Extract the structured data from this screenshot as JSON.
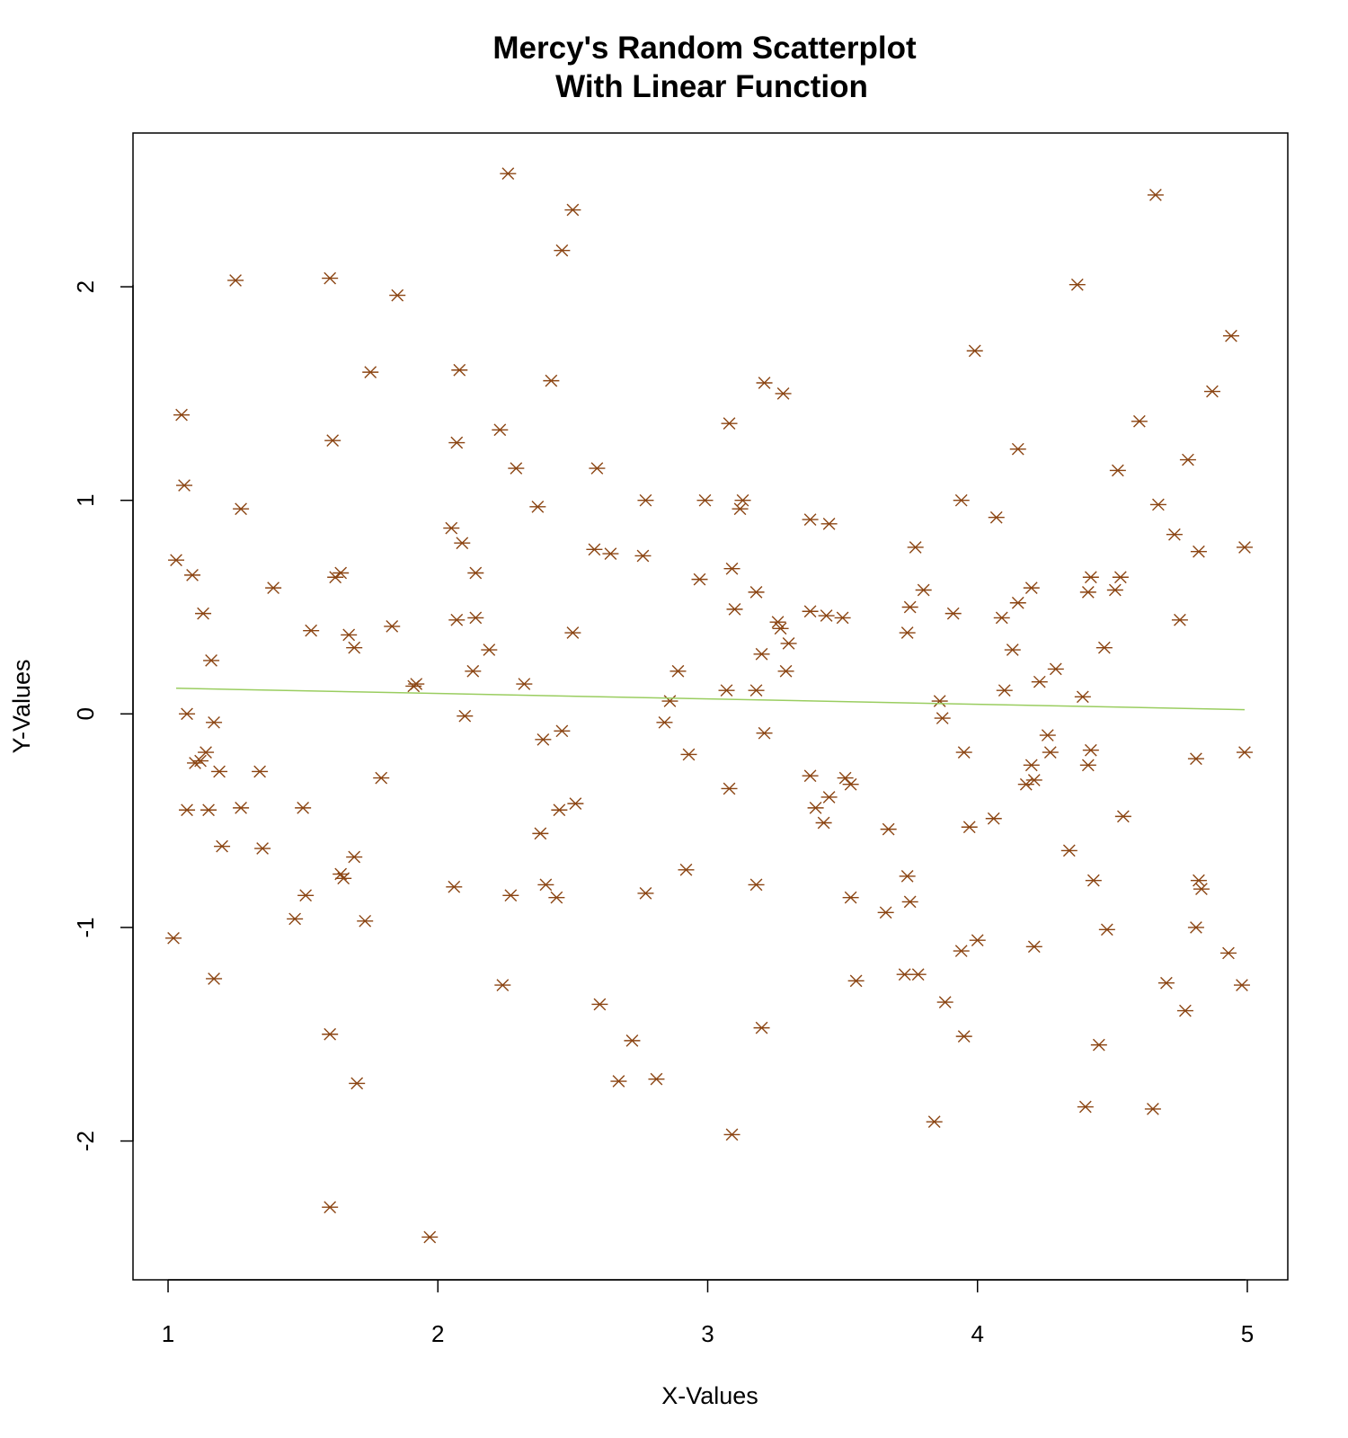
{
  "chart_data": {
    "type": "scatter",
    "title": [
      "Mercy's Random Scatterplot",
      "With Linear Function"
    ],
    "xlabel": "X-Values",
    "ylabel": "Y-Values",
    "xlim": [
      0.87,
      5.15
    ],
    "ylim": [
      -2.65,
      2.72
    ],
    "xticks": [
      1,
      2,
      3,
      4,
      5
    ],
    "yticks": [
      -2,
      -1,
      0,
      1,
      2
    ],
    "grid": false,
    "legend": null,
    "marker": "asterisk",
    "colors": {
      "points": "#8B4513",
      "line": "#9acd60",
      "axes": "#000000"
    },
    "regression_line": {
      "x": [
        1.03,
        4.99
      ],
      "y": [
        0.12,
        0.02
      ]
    },
    "points": [
      [
        1.02,
        -1.05
      ],
      [
        1.03,
        0.72
      ],
      [
        1.05,
        1.4
      ],
      [
        1.06,
        1.07
      ],
      [
        1.07,
        -0.45
      ],
      [
        1.07,
        0.0
      ],
      [
        1.09,
        0.65
      ],
      [
        1.1,
        -0.23
      ],
      [
        1.12,
        -0.22
      ],
      [
        1.13,
        0.47
      ],
      [
        1.14,
        -0.18
      ],
      [
        1.15,
        -0.45
      ],
      [
        1.16,
        0.25
      ],
      [
        1.17,
        -0.04
      ],
      [
        1.17,
        -1.24
      ],
      [
        1.19,
        -0.27
      ],
      [
        1.2,
        -0.62
      ],
      [
        1.25,
        2.03
      ],
      [
        1.27,
        0.96
      ],
      [
        1.27,
        -0.44
      ],
      [
        1.34,
        -0.27
      ],
      [
        1.35,
        -0.63
      ],
      [
        1.39,
        0.59
      ],
      [
        1.47,
        -0.96
      ],
      [
        1.5,
        -0.44
      ],
      [
        1.51,
        -0.85
      ],
      [
        1.53,
        0.39
      ],
      [
        1.6,
        2.04
      ],
      [
        1.61,
        1.28
      ],
      [
        1.6,
        -1.5
      ],
      [
        1.6,
        -2.31
      ],
      [
        1.62,
        0.64
      ],
      [
        1.64,
        0.66
      ],
      [
        1.64,
        -0.75
      ],
      [
        1.65,
        -0.77
      ],
      [
        1.67,
        0.37
      ],
      [
        1.69,
        0.31
      ],
      [
        1.69,
        -0.67
      ],
      [
        1.7,
        -1.73
      ],
      [
        1.73,
        -0.97
      ],
      [
        1.75,
        1.6
      ],
      [
        1.79,
        -0.3
      ],
      [
        1.83,
        0.41
      ],
      [
        1.85,
        1.96
      ],
      [
        1.91,
        0.13
      ],
      [
        1.92,
        0.14
      ],
      [
        1.97,
        -2.45
      ],
      [
        2.05,
        0.87
      ],
      [
        2.06,
        -0.81
      ],
      [
        2.07,
        0.44
      ],
      [
        2.07,
        1.27
      ],
      [
        2.08,
        1.61
      ],
      [
        2.09,
        0.8
      ],
      [
        2.1,
        -0.01
      ],
      [
        2.13,
        0.2
      ],
      [
        2.14,
        0.66
      ],
      [
        2.14,
        0.45
      ],
      [
        2.19,
        0.3
      ],
      [
        2.23,
        1.33
      ],
      [
        2.24,
        -1.27
      ],
      [
        2.26,
        2.53
      ],
      [
        2.27,
        -0.85
      ],
      [
        2.29,
        1.15
      ],
      [
        2.32,
        0.14
      ],
      [
        2.37,
        0.97
      ],
      [
        2.38,
        -0.56
      ],
      [
        2.39,
        -0.12
      ],
      [
        2.4,
        -0.8
      ],
      [
        2.42,
        1.56
      ],
      [
        2.44,
        -0.86
      ],
      [
        2.45,
        -0.45
      ],
      [
        2.46,
        2.17
      ],
      [
        2.46,
        -0.08
      ],
      [
        2.5,
        0.38
      ],
      [
        2.5,
        2.36
      ],
      [
        2.51,
        -0.42
      ],
      [
        2.58,
        0.77
      ],
      [
        2.59,
        1.15
      ],
      [
        2.6,
        -1.36
      ],
      [
        2.64,
        0.75
      ],
      [
        2.67,
        -1.72
      ],
      [
        2.72,
        -1.53
      ],
      [
        2.76,
        0.74
      ],
      [
        2.77,
        1.0
      ],
      [
        2.77,
        -0.84
      ],
      [
        2.81,
        -1.71
      ],
      [
        2.84,
        -0.04
      ],
      [
        2.86,
        0.06
      ],
      [
        2.89,
        0.2
      ],
      [
        2.92,
        -0.73
      ],
      [
        2.93,
        -0.19
      ],
      [
        2.97,
        0.63
      ],
      [
        2.99,
        1.0
      ],
      [
        3.07,
        0.11
      ],
      [
        3.08,
        -0.35
      ],
      [
        3.08,
        1.36
      ],
      [
        3.09,
        0.68
      ],
      [
        3.1,
        0.49
      ],
      [
        3.09,
        -1.97
      ],
      [
        3.12,
        0.96
      ],
      [
        3.13,
        1.0
      ],
      [
        3.18,
        0.57
      ],
      [
        3.18,
        0.11
      ],
      [
        3.18,
        -0.8
      ],
      [
        3.2,
        0.28
      ],
      [
        3.2,
        -1.47
      ],
      [
        3.21,
        -0.09
      ],
      [
        3.21,
        1.55
      ],
      [
        3.26,
        0.43
      ],
      [
        3.27,
        0.4
      ],
      [
        3.28,
        1.5
      ],
      [
        3.29,
        0.2
      ],
      [
        3.3,
        0.33
      ],
      [
        3.38,
        0.91
      ],
      [
        3.38,
        0.48
      ],
      [
        3.38,
        -0.29
      ],
      [
        3.4,
        -0.44
      ],
      [
        3.43,
        -0.51
      ],
      [
        3.44,
        0.46
      ],
      [
        3.45,
        -0.39
      ],
      [
        3.45,
        0.89
      ],
      [
        3.5,
        0.45
      ],
      [
        3.51,
        -0.3
      ],
      [
        3.53,
        -0.33
      ],
      [
        3.53,
        -0.86
      ],
      [
        3.55,
        -1.25
      ],
      [
        3.66,
        -0.93
      ],
      [
        3.67,
        -0.54
      ],
      [
        3.73,
        -1.22
      ],
      [
        3.74,
        -0.76
      ],
      [
        3.74,
        0.38
      ],
      [
        3.75,
        0.5
      ],
      [
        3.75,
        -0.88
      ],
      [
        3.77,
        0.78
      ],
      [
        3.78,
        -1.22
      ],
      [
        3.8,
        0.58
      ],
      [
        3.84,
        -1.91
      ],
      [
        3.86,
        0.06
      ],
      [
        3.87,
        -0.02
      ],
      [
        3.88,
        -1.35
      ],
      [
        3.91,
        0.47
      ],
      [
        3.94,
        1.0
      ],
      [
        3.94,
        -1.11
      ],
      [
        3.95,
        -0.18
      ],
      [
        3.95,
        -1.51
      ],
      [
        3.97,
        -0.53
      ],
      [
        3.99,
        1.7
      ],
      [
        4.0,
        -1.06
      ],
      [
        4.06,
        -0.49
      ],
      [
        4.07,
        0.92
      ],
      [
        4.09,
        0.45
      ],
      [
        4.1,
        0.11
      ],
      [
        4.13,
        0.3
      ],
      [
        4.15,
        1.24
      ],
      [
        4.15,
        0.52
      ],
      [
        4.18,
        -0.33
      ],
      [
        4.2,
        -0.24
      ],
      [
        4.2,
        0.59
      ],
      [
        4.21,
        -1.09
      ],
      [
        4.21,
        -0.31
      ],
      [
        4.23,
        0.15
      ],
      [
        4.26,
        -0.1
      ],
      [
        4.27,
        -0.18
      ],
      [
        4.29,
        0.21
      ],
      [
        4.34,
        -0.64
      ],
      [
        4.37,
        2.01
      ],
      [
        4.39,
        0.08
      ],
      [
        4.4,
        -1.84
      ],
      [
        4.41,
        0.57
      ],
      [
        4.41,
        -0.24
      ],
      [
        4.42,
        -0.17
      ],
      [
        4.42,
        0.64
      ],
      [
        4.43,
        -0.78
      ],
      [
        4.45,
        -1.55
      ],
      [
        4.47,
        0.31
      ],
      [
        4.48,
        -1.01
      ],
      [
        4.51,
        0.58
      ],
      [
        4.52,
        1.14
      ],
      [
        4.53,
        0.64
      ],
      [
        4.54,
        -0.48
      ],
      [
        4.6,
        1.37
      ],
      [
        4.65,
        -1.85
      ],
      [
        4.66,
        2.43
      ],
      [
        4.67,
        0.98
      ],
      [
        4.7,
        -1.26
      ],
      [
        4.73,
        0.84
      ],
      [
        4.75,
        0.44
      ],
      [
        4.77,
        -1.39
      ],
      [
        4.78,
        1.19
      ],
      [
        4.81,
        -0.21
      ],
      [
        4.81,
        -1.0
      ],
      [
        4.82,
        0.76
      ],
      [
        4.82,
        -0.78
      ],
      [
        4.83,
        -0.82
      ],
      [
        4.87,
        1.51
      ],
      [
        4.93,
        -1.12
      ],
      [
        4.94,
        1.77
      ],
      [
        4.98,
        -1.27
      ],
      [
        4.99,
        0.78
      ],
      [
        4.99,
        -0.18
      ]
    ]
  }
}
